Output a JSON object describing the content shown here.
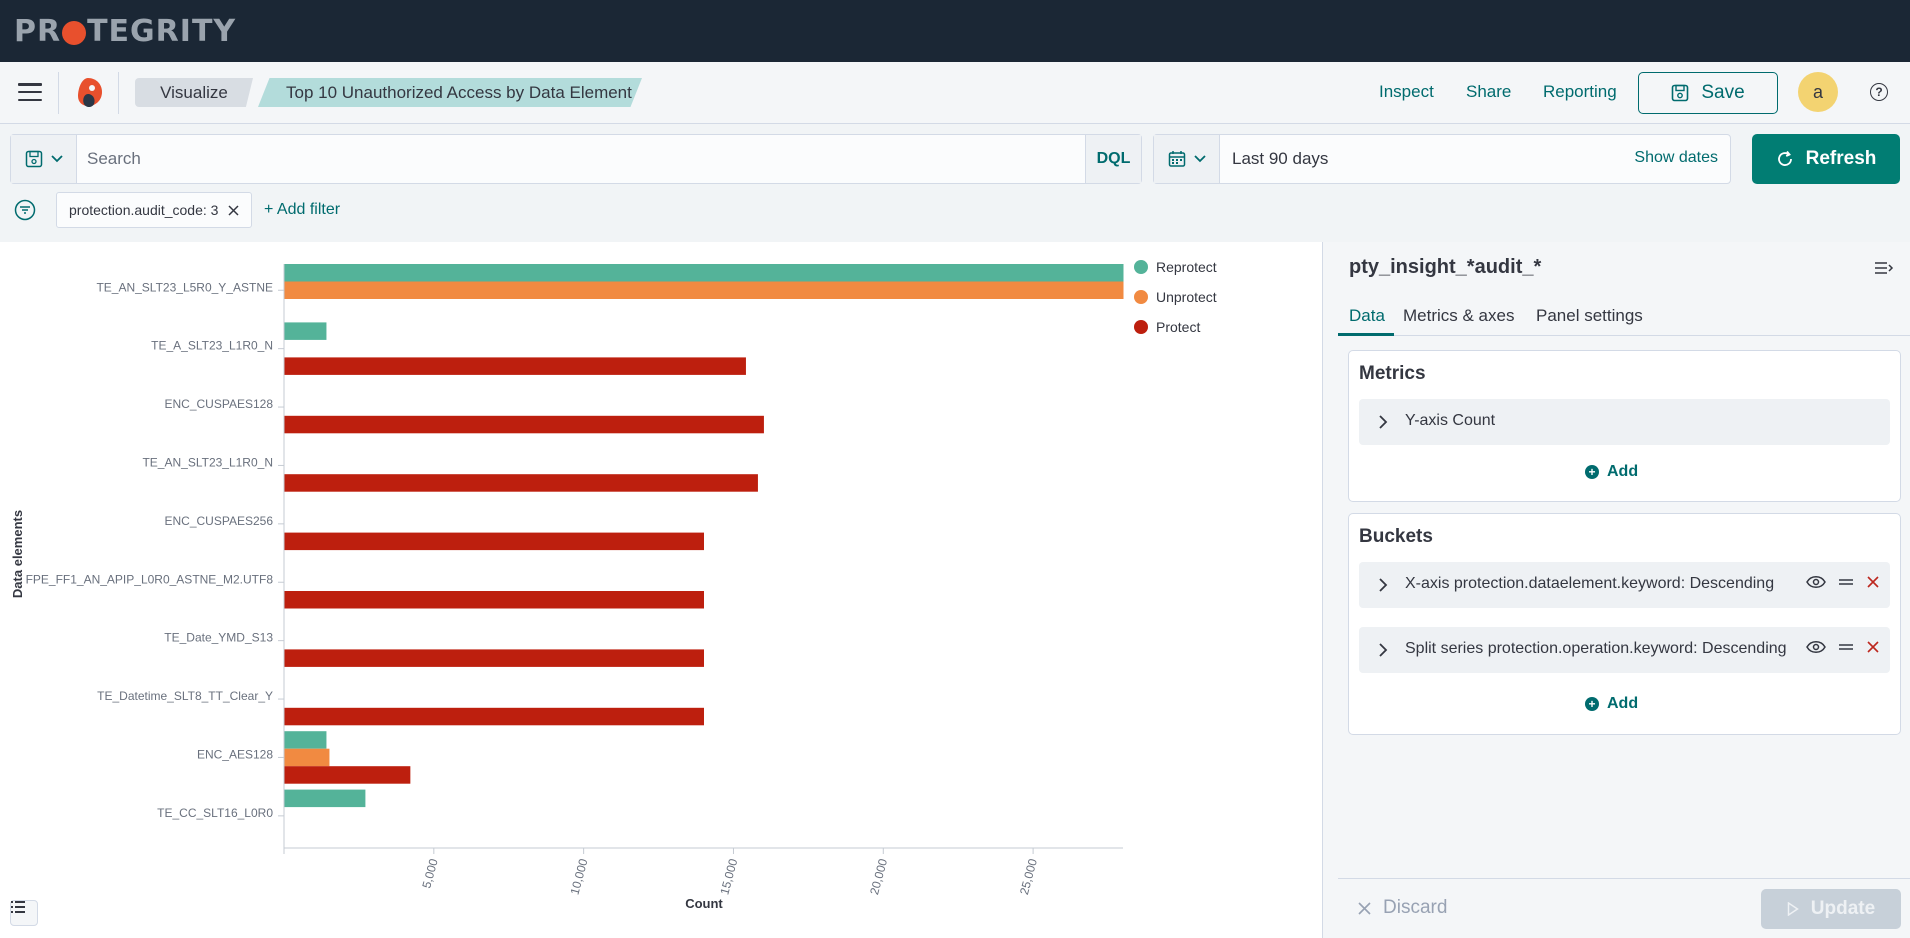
{
  "brand": {
    "text_pre": "PR",
    "text_post": "TEGRITY"
  },
  "breadcrumbs": {
    "visualize": "Visualize",
    "title": "Top 10 Unauthorized Access by Data Element"
  },
  "header": {
    "inspect": "Inspect",
    "share": "Share",
    "reporting": "Reporting",
    "save": "Save",
    "avatar": "a",
    "help": "?"
  },
  "query": {
    "search_placeholder": "Search",
    "language": "DQL",
    "date_range": "Last 90 days",
    "show_dates": "Show dates",
    "refresh": "Refresh"
  },
  "filters": {
    "pill": "protection.audit_code: 3",
    "add": "+ Add filter"
  },
  "colors": {
    "reprotect": "#54b399",
    "unprotect": "#f18a41",
    "protect": "#bd1f0e",
    "accent": "#006b6e"
  },
  "chart_data": {
    "type": "bar",
    "orientation": "horizontal",
    "ylabel": "Data elements",
    "xlabel": "Count",
    "xlim": [
      0,
      28000
    ],
    "xticks": [
      "5,000",
      "10,000",
      "15,000",
      "20,000",
      "25,000"
    ],
    "legend_position": "top-right",
    "categories": [
      "TE_AN_SLT23_L5R0_Y_ASTNE",
      "TE_A_SLT23_L1R0_N",
      "ENC_CUSPAES128",
      "TE_AN_SLT23_L1R0_N",
      "ENC_CUSPAES256",
      "FPE_FF1_AN_APIP_L0R0_ASTNE_M2.UTF8",
      "TE_Date_YMD_S13",
      "TE_Datetime_SLT8_TT_Clear_Y",
      "ENC_AES128",
      "TE_CC_SLT16_L0R0"
    ],
    "series": [
      {
        "name": "Reprotect",
        "values": [
          28000,
          1400,
          0,
          0,
          0,
          0,
          0,
          0,
          1400,
          2700
        ]
      },
      {
        "name": "Unprotect",
        "values": [
          28000,
          0,
          0,
          0,
          0,
          0,
          0,
          0,
          1500,
          0
        ]
      },
      {
        "name": "Protect",
        "values": [
          0,
          15400,
          16000,
          15800,
          14000,
          14000,
          14000,
          14000,
          4200,
          0
        ]
      }
    ]
  },
  "sidebar": {
    "index": "pty_insight_*audit_*",
    "tabs": [
      "Data",
      "Metrics & axes",
      "Panel settings"
    ],
    "metrics_title": "Metrics",
    "metric_item": "Y-axis Count",
    "add": "Add",
    "buckets_title": "Buckets",
    "bucket_items": [
      {
        "type": "X-axis",
        "field": "protection.dataelement.keyword: Descending"
      },
      {
        "type": "Split series",
        "field": "protection.operation.keyword: Descending"
      }
    ],
    "discard": "Discard",
    "update": "Update"
  }
}
